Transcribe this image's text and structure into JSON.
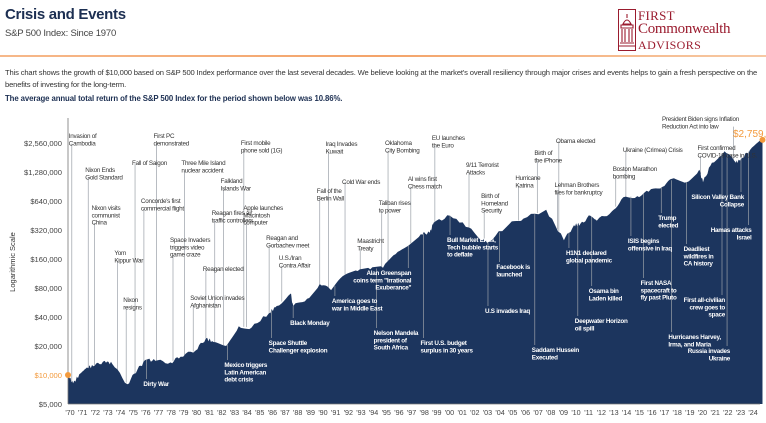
{
  "header": {
    "title": "Crisis and Events",
    "subtitle": "S&P 500 Index: Since 1970"
  },
  "logo": {
    "text": "First Commonwealth Advisors",
    "line1": "FIRST",
    "line2": "Commonwealth",
    "line3": "ADVISORS",
    "color": "#9a1b2e"
  },
  "intro": "This chart shows the growth of $10,000 based on S&P 500 Index performance over the last several decades. We believe looking at the market's overall resiliency through major crises and events helps to gain a fresh perspective on the benefits of investing for the long-term.",
  "highlight": "The average annual total return of the S&P 500 Index for the period shown below was 10.86%.",
  "colors": {
    "area": "#1c355e",
    "accent": "#f39a3c",
    "title": "#1c2f52",
    "leader": "#9aa0a8"
  },
  "chart_data": {
    "type": "area",
    "title": "",
    "xlabel": "",
    "ylabel": "Logarithmic Scale",
    "yscale": "log2",
    "ylim": [
      5000,
      3500000
    ],
    "xlim": [
      1970,
      2025
    ],
    "yticks": [
      5000,
      10000,
      20000,
      40000,
      80000,
      160000,
      320000,
      640000,
      1280000,
      2560000
    ],
    "ytick_labels": [
      "$5,000",
      "$10,000",
      "$20,000",
      "$40,000",
      "$80,000",
      "$160,000",
      "$320,000",
      "$640,000",
      "$1,280,000",
      "$2,560,000"
    ],
    "highlight_tick": "$10,000",
    "xtick_labels": [
      "'70",
      "'71",
      "'72",
      "'73",
      "'74",
      "'75",
      "'76",
      "'77",
      "'78",
      "'79",
      "'80",
      "'81",
      "'82",
      "'83",
      "'84",
      "'85",
      "'86",
      "'87",
      "'88",
      "'89",
      "'90",
      "'91",
      "'92",
      "'93",
      "'94",
      "'95",
      "'96",
      "'97",
      "'98",
      "'99",
      "'00",
      "'01",
      "'02",
      "'03",
      "'04",
      "'05",
      "'06",
      "'07",
      "'08",
      "'09",
      "'10",
      "'11",
      "'12",
      "'13",
      "'14",
      "'15",
      "'16",
      "'17",
      "'18",
      "'19",
      "'20",
      "'21",
      "'22",
      "'23",
      "'24"
    ],
    "end_label": "$2,759,3",
    "series": {
      "x": [
        1970,
        1970.4,
        1970.99,
        1971.5,
        1972.1,
        1972.9,
        1973.5,
        1974.7,
        1975.5,
        1976.2,
        1976.9,
        1978.1,
        1978.9,
        1980.1,
        1980.9,
        1981.5,
        1982.5,
        1983.5,
        1984.5,
        1985.9,
        1986.5,
        1987.6,
        1987.8,
        1988.9,
        1989.9,
        1990.8,
        1991.9,
        1992.9,
        1993.9,
        1994.9,
        1995.9,
        1996.9,
        1997.9,
        1998.6,
        1998.9,
        2000.2,
        2001.7,
        2002.8,
        2003.2,
        2004.9,
        2006.0,
        2007.8,
        2009.2,
        2010.0,
        2010.5,
        2011.3,
        2011.8,
        2013.0,
        2013.9,
        2015.0,
        2015.9,
        2017.0,
        2017.9,
        2018.9,
        2019.9,
        2020.2,
        2020.9,
        2021.9,
        2022.8,
        2023.2,
        2023.9,
        2024.9
      ],
      "y": [
        10000,
        8200,
        10400,
        12000,
        12500,
        14000,
        13000,
        8000,
        11500,
        14500,
        14000,
        13500,
        15500,
        18000,
        24000,
        22000,
        20000,
        32000,
        31000,
        44000,
        52000,
        70000,
        52000,
        62000,
        88000,
        76000,
        110000,
        120000,
        125000,
        130000,
        180000,
        220000,
        290000,
        300000,
        380000,
        450000,
        340000,
        250000,
        240000,
        370000,
        420000,
        520000,
        250000,
        360000,
        370000,
        450000,
        400000,
        500000,
        700000,
        720000,
        800000,
        900000,
        1100000,
        1000000,
        1350000,
        1000000,
        1600000,
        2100000,
        1600000,
        1750000,
        2150000,
        2759300
      ]
    }
  },
  "annotations": [
    {
      "text": [
        "Invasion of",
        "Cambodia"
      ],
      "year": 1970.3
    },
    {
      "text": [
        "Nixon Ends",
        "Gold Standard"
      ],
      "year": 1971.6
    },
    {
      "text": [
        "Nixon visits",
        "communist",
        "China"
      ],
      "year": 1972.1
    },
    {
      "text": [
        "Yom",
        "Kippur War"
      ],
      "year": 1973.9
    },
    {
      "text": [
        "Nixon",
        "resigns"
      ],
      "year": 1974.6
    },
    {
      "text": [
        "Fall of Saigon"
      ],
      "year": 1975.3
    },
    {
      "text": [
        "Dirty War"
      ],
      "year": 1976.2
    },
    {
      "text": [
        "Concorde's first",
        "commercial flight"
      ],
      "year": 1976.0
    },
    {
      "text": [
        "First PC",
        "demonstrated"
      ],
      "year": 1977.0
    },
    {
      "text": [
        "Space Invaders",
        "triggers video",
        "game craze"
      ],
      "year": 1978.3
    },
    {
      "text": [
        "Three Mile Island",
        "nuclear accident"
      ],
      "year": 1979.2
    },
    {
      "text": [
        "Reagan elected"
      ],
      "year": 1980.9
    },
    {
      "text": [
        "Soviet Union invades",
        "Afghanistan"
      ],
      "year": 1979.9
    },
    {
      "text": [
        "Reagan fires air",
        "traffic controllers"
      ],
      "year": 1981.6
    },
    {
      "text": [
        "Falkland",
        "Islands War"
      ],
      "year": 1982.3
    },
    {
      "text": [
        "Mexico triggers",
        "Latin American",
        "debt crisis"
      ],
      "year": 1982.6
    },
    {
      "text": [
        "First mobile",
        "phone sold (1G)"
      ],
      "year": 1983.9
    },
    {
      "text": [
        "Apple launches",
        "Macintosh",
        "computer"
      ],
      "year": 1984.1
    },
    {
      "text": [
        "Reagan and",
        "Gorbachev meet"
      ],
      "year": 1985.9
    },
    {
      "text": [
        "Space Shuttle",
        "Challenger explosion"
      ],
      "year": 1986.1
    },
    {
      "text": [
        "U.S./Iran",
        "Contra Affair"
      ],
      "year": 1986.9
    },
    {
      "text": [
        "Black Monday"
      ],
      "year": 1987.8
    },
    {
      "text": [
        "Fall of the",
        "Berlin Wall"
      ],
      "year": 1989.9
    },
    {
      "text": [
        "Iraq Invades",
        "Kuwait"
      ],
      "year": 1990.6
    },
    {
      "text": [
        "America goes to",
        "war in Middle East"
      ],
      "year": 1991.1
    },
    {
      "text": [
        "Cold War ends"
      ],
      "year": 1991.9
    },
    {
      "text": [
        "Maastricht",
        "Treaty"
      ],
      "year": 1993.1
    },
    {
      "text": [
        "Nelson Mandela",
        "president of",
        "South Africa"
      ],
      "year": 1994.4
    },
    {
      "text": [
        "Taliban rises",
        "to power"
      ],
      "year": 1994.8
    },
    {
      "text": [
        "Oklahoma",
        "City Bombing"
      ],
      "year": 1995.3
    },
    {
      "text": [
        "AI wins first",
        "Chess match"
      ],
      "year": 1997.1
    },
    {
      "text": [
        "Alan Greenspan",
        "coins term \"Irrational",
        "Exuberance\""
      ],
      "year": 1996.9
    },
    {
      "text": [
        "First U.S. budget",
        "surplus in 30 years"
      ],
      "year": 1998.1
    },
    {
      "text": [
        "EU launches",
        "the Euro"
      ],
      "year": 1999.0
    },
    {
      "text": [
        "Bull Market Ends,",
        "Tech bubble starts",
        "to deflate"
      ],
      "year": 2000.2
    },
    {
      "text": [
        "9/11 Terrorist",
        "Attacks"
      ],
      "year": 2001.7
    },
    {
      "text": [
        "Birth of",
        "Homeland",
        "Security"
      ],
      "year": 2002.9
    },
    {
      "text": [
        "U.S invades Iraq"
      ],
      "year": 2003.2
    },
    {
      "text": [
        "Facebook is",
        "launched"
      ],
      "year": 2004.1
    },
    {
      "text": [
        "Hurricane",
        "Katrina"
      ],
      "year": 2005.6
    },
    {
      "text": [
        "Birth of",
        "the iPhone"
      ],
      "year": 2007.1
    },
    {
      "text": [
        "Saddam Hussein",
        "Executed"
      ],
      "year": 2006.9
    },
    {
      "text": [
        "Obama elected"
      ],
      "year": 2008.8
    },
    {
      "text": [
        "Lehman Brothers",
        "files for bankruptcy"
      ],
      "year": 2008.7
    },
    {
      "text": [
        "H1N1 declared",
        "global pandemic"
      ],
      "year": 2009.6
    },
    {
      "text": [
        "Deepwater Horizon",
        "oil spill"
      ],
      "year": 2010.3
    },
    {
      "text": [
        "Osama bin",
        "Laden killed"
      ],
      "year": 2011.4
    },
    {
      "text": [
        "Ukraine (Crimea) Crisis"
      ],
      "year": 2014.1
    },
    {
      "text": [
        "Boston Marathon",
        "bombing"
      ],
      "year": 2013.3
    },
    {
      "text": [
        "ISIS begins",
        "offensive in Iraq"
      ],
      "year": 2014.5
    },
    {
      "text": [
        "First NASA",
        "spacecraft to",
        "fly past Pluto"
      ],
      "year": 2015.5
    },
    {
      "text": [
        "Trump",
        "elected"
      ],
      "year": 2016.9
    },
    {
      "text": [
        "Hurricanes Harvey,",
        "Irma, and Maria"
      ],
      "year": 2017.7
    },
    {
      "text": [
        "First confirmed",
        "COVID-19 case in U.S."
      ],
      "year": 2020.0
    },
    {
      "text": [
        "Deadliest",
        "wildfires in",
        "CA history"
      ],
      "year": 2018.9
    },
    {
      "text": [
        "President Biden signs Inflation",
        "Reduction Act into law"
      ],
      "year": 2022.6
    },
    {
      "text": [
        "Silicon Valley Bank",
        "Collapse"
      ],
      "year": 2023.2
    },
    {
      "text": [
        "Hamas attacks",
        "Israel"
      ],
      "year": 2023.8
    },
    {
      "text": [
        "First all-civilian",
        "crew goes to",
        "space"
      ],
      "year": 2021.7
    },
    {
      "text": [
        "Russia invades",
        "Ukraine"
      ],
      "year": 2022.1
    }
  ]
}
